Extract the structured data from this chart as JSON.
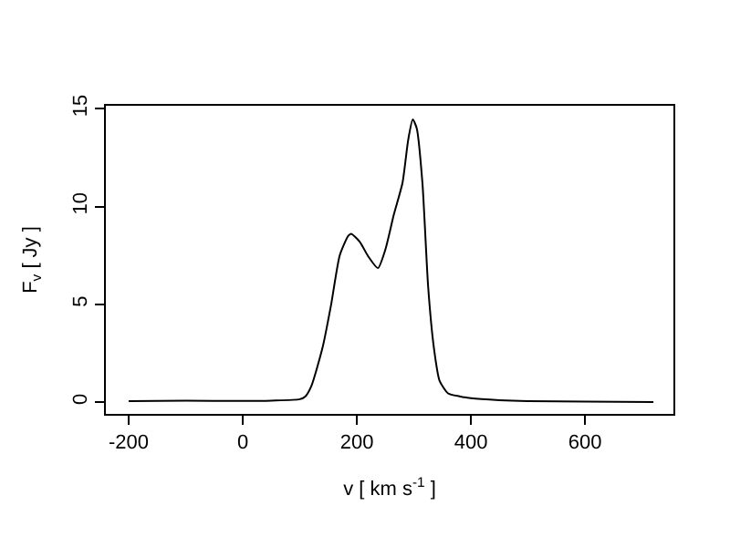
{
  "chart_data": {
    "type": "line",
    "xlabel": "v [ km s$^{-1}$ ]",
    "ylabel": "F$_{v}$ [ Jy ]",
    "x": [
      -200,
      -100,
      0,
      50,
      100,
      110,
      120,
      140,
      155,
      170,
      185,
      190,
      205,
      220,
      237,
      250,
      265,
      280,
      290,
      298,
      305,
      315,
      325,
      335,
      345,
      360,
      380,
      400,
      450,
      500,
      600,
      720
    ],
    "series": [
      {
        "color": "#000000",
        "values": [
          0.05,
          0.07,
          0.06,
          0.08,
          0.15,
          0.3,
          0.8,
          2.8,
          5.0,
          7.5,
          8.5,
          8.6,
          8.2,
          7.45,
          6.85,
          7.8,
          9.6,
          11.2,
          13.4,
          14.45,
          14.0,
          11.2,
          5.9,
          2.8,
          1.1,
          0.45,
          0.3,
          0.2,
          0.1,
          0.05,
          0.03,
          0.0
        ]
      }
    ],
    "xlim": [
      -240,
      755
    ],
    "ylim": [
      -0.6,
      15.15
    ],
    "xticks": [
      -200,
      0,
      200,
      400,
      600
    ],
    "yticks": [
      0,
      5,
      10,
      15
    ],
    "legend": false
  }
}
